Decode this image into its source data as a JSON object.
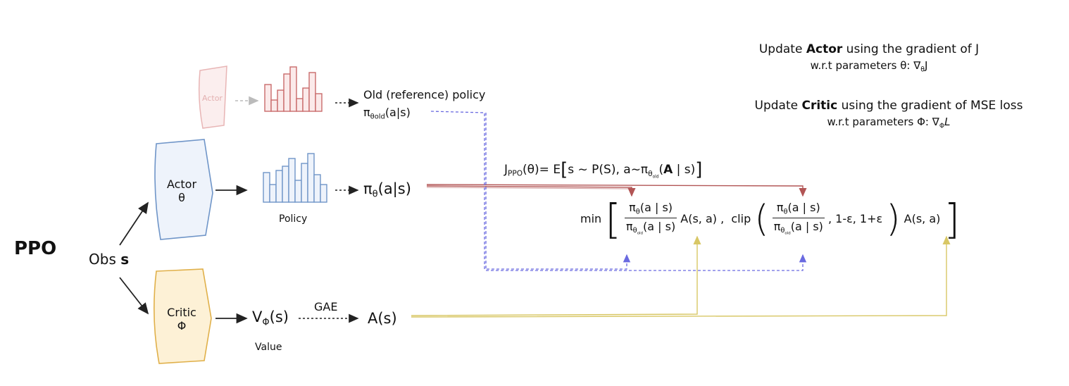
{
  "title": "PPO",
  "obs": {
    "label": "Obs",
    "symbol": "s"
  },
  "old_actor": {
    "label": "Actor"
  },
  "old_policy": {
    "line1": "Old (reference) policy",
    "pi": "π",
    "sub": "θold",
    "arg": "(a|s)"
  },
  "actor": {
    "label": "Actor",
    "param": "θ"
  },
  "policy": {
    "label": "Policy",
    "pi": "π",
    "sub": "θ",
    "arg": "(a|s)"
  },
  "critic": {
    "label": "Critic",
    "param": "Φ"
  },
  "value": {
    "label": "Value",
    "v": "V",
    "sub": "Φ",
    "arg": "(s)"
  },
  "gae": {
    "label": "GAE"
  },
  "advantage": {
    "label": "A(s)"
  },
  "objective": {
    "j": "J",
    "j_sub": "PPO",
    "j_arg": "(θ)=",
    "expect": "E",
    "inner_a": "s ~ P(S),  a~π",
    "theta_old_sub": "θ",
    "theta_old_subsub": "old",
    "inner_b_open": "(",
    "inner_b_bold": "A",
    "inner_b_close": " | s)",
    "min": "min",
    "ratio_num_pi": "π",
    "ratio_num_sub": "θ",
    "ratio_num_arg": "(a | s)",
    "ratio_den_pi": "π",
    "ratio_den_sub": "θ",
    "ratio_den_subsub": "old",
    "ratio_den_arg": "(a | s)",
    "adv_term": "A(s, a) ,",
    "clip": "clip",
    "clip_args": ", 1-ε, 1+ε",
    "adv_term_2": "A(s, a)"
  },
  "update_actor": {
    "pre": "Update ",
    "bold": "Actor",
    "post": " using the gradient of J",
    "line2_pre": "w.r.t parameters θ: ",
    "nabla": "∇",
    "nabla_sub": "θ",
    "target": "J"
  },
  "update_critic": {
    "pre": "Update ",
    "bold": "Critic",
    "post": " using the gradient of MSE loss",
    "line2_pre": "w.r.t parameters Φ: ",
    "nabla": "∇",
    "nabla_sub": "Φ",
    "target": "L"
  },
  "colors": {
    "actor_blue": "#6f95c8",
    "actor_fill": "#eef3fb",
    "old_red": "#c96b6b",
    "old_faint": "#e8b5b5",
    "critic_yellow": "#e0b04a",
    "critic_fill": "#fdf1d6",
    "old_dashed_blue": "#6a6ae0",
    "wire_red": "#b25555",
    "wire_yellow": "#d8c765"
  }
}
